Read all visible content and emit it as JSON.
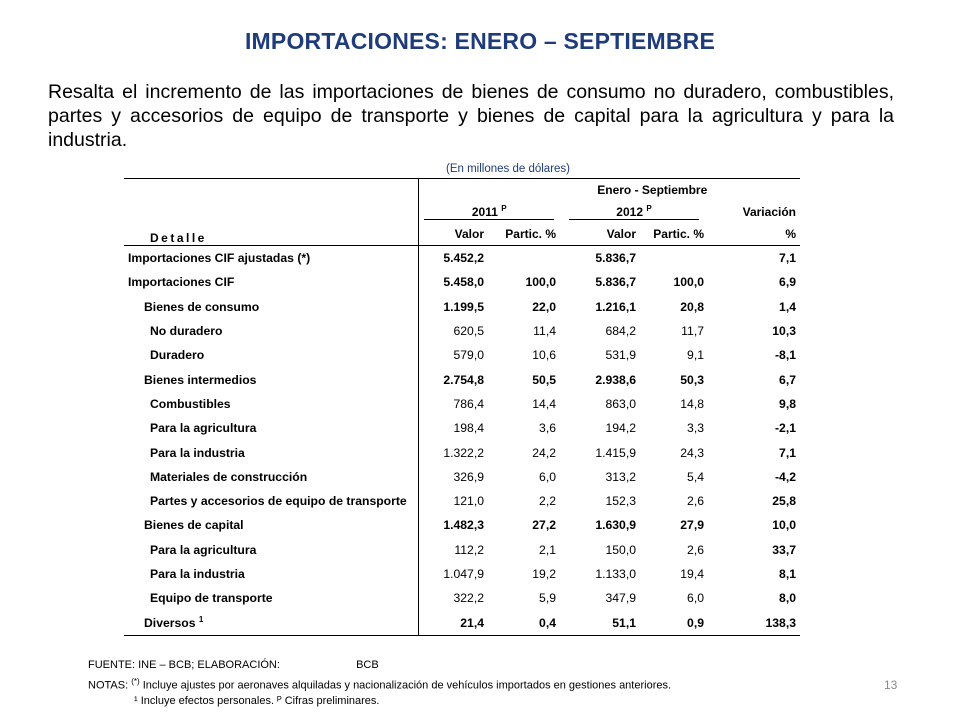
{
  "title": "IMPORTACIONES: ENERO – SEPTIEMBRE",
  "intro": "Resalta el incremento de las importaciones de bienes de consumo no duradero, combustibles, partes y accesorios de equipo de transporte y bienes de capital para la agricultura y para la industria.",
  "unit_note": "(En millones de dólares)",
  "table": {
    "period_header": "Enero - Septiembre",
    "year1": "2011",
    "year1_sup": "P",
    "year2": "2012",
    "year2_sup": "P",
    "variation_header": "Variación",
    "detail_header": "Detalle",
    "col_valor": "Valor",
    "col_partic": "Partic. %",
    "col_pct": "%",
    "rows": [
      {
        "label": "Importaciones CIF ajustadas (*)",
        "v1": "5.452,2",
        "p1": "",
        "v2": "5.836,7",
        "p2": "",
        "var": "7,1"
      },
      {
        "label": "Importaciones CIF",
        "v1": "5.458,0",
        "p1": "100,0",
        "v2": "5.836,7",
        "p2": "100,0",
        "var": "6,9"
      },
      {
        "label": "Bienes de consumo",
        "v1": "1.199,5",
        "p1": "22,0",
        "v2": "1.216,1",
        "p2": "20,8",
        "var": "1,4"
      },
      {
        "label": "No duradero",
        "v1": "620,5",
        "p1": "11,4",
        "v2": "684,2",
        "p2": "11,7",
        "var": "10,3"
      },
      {
        "label": "Duradero",
        "v1": "579,0",
        "p1": "10,6",
        "v2": "531,9",
        "p2": "9,1",
        "var": "-8,1"
      },
      {
        "label": "Bienes intermedios",
        "v1": "2.754,8",
        "p1": "50,5",
        "v2": "2.938,6",
        "p2": "50,3",
        "var": "6,7"
      },
      {
        "label": "Combustibles",
        "v1": "786,4",
        "p1": "14,4",
        "v2": "863,0",
        "p2": "14,8",
        "var": "9,8"
      },
      {
        "label": "Para la agricultura",
        "v1": "198,4",
        "p1": "3,6",
        "v2": "194,2",
        "p2": "3,3",
        "var": "-2,1"
      },
      {
        "label": "Para la industria",
        "v1": "1.322,2",
        "p1": "24,2",
        "v2": "1.415,9",
        "p2": "24,3",
        "var": "7,1"
      },
      {
        "label": "Materiales de construcción",
        "v1": "326,9",
        "p1": "6,0",
        "v2": "313,2",
        "p2": "5,4",
        "var": "-4,2"
      },
      {
        "label": "Partes y accesorios de equipo de transporte",
        "v1": "121,0",
        "p1": "2,2",
        "v2": "152,3",
        "p2": "2,6",
        "var": "25,8"
      },
      {
        "label": "Bienes de capital",
        "v1": "1.482,3",
        "p1": "27,2",
        "v2": "1.630,9",
        "p2": "27,9",
        "var": "10,0"
      },
      {
        "label": "Para la agricultura",
        "v1": "112,2",
        "p1": "2,1",
        "v2": "150,0",
        "p2": "2,6",
        "var": "33,7"
      },
      {
        "label": "Para la industria",
        "v1": "1.047,9",
        "p1": "19,2",
        "v2": "1.133,0",
        "p2": "19,4",
        "var": "8,1"
      },
      {
        "label": "Equipo de transporte",
        "v1": "322,2",
        "p1": "5,9",
        "v2": "347,9",
        "p2": "6,0",
        "var": "8,0"
      },
      {
        "label": "Diversos",
        "sup": "1",
        "v1": "21,4",
        "p1": "0,4",
        "v2": "51,1",
        "p2": "0,9",
        "var": "138,3"
      }
    ]
  },
  "footer": {
    "source_label": "FUENTE: INE – BCB;  ELABORACIÓN:",
    "source_org": "BCB",
    "notes_label": "NOTAS:",
    "note1_mark": "(*)",
    "note1": "Incluye ajustes por aeronaves alquiladas y nacionalización de vehículos importados en gestiones anteriores.",
    "note2": "¹ Incluye efectos personales. ᴾ Cifras preliminares."
  },
  "page_number": "13",
  "colors": {
    "title": "#1f3c7a",
    "unit_note": "#1f3c7a",
    "page_number": "#8a8a8a"
  }
}
